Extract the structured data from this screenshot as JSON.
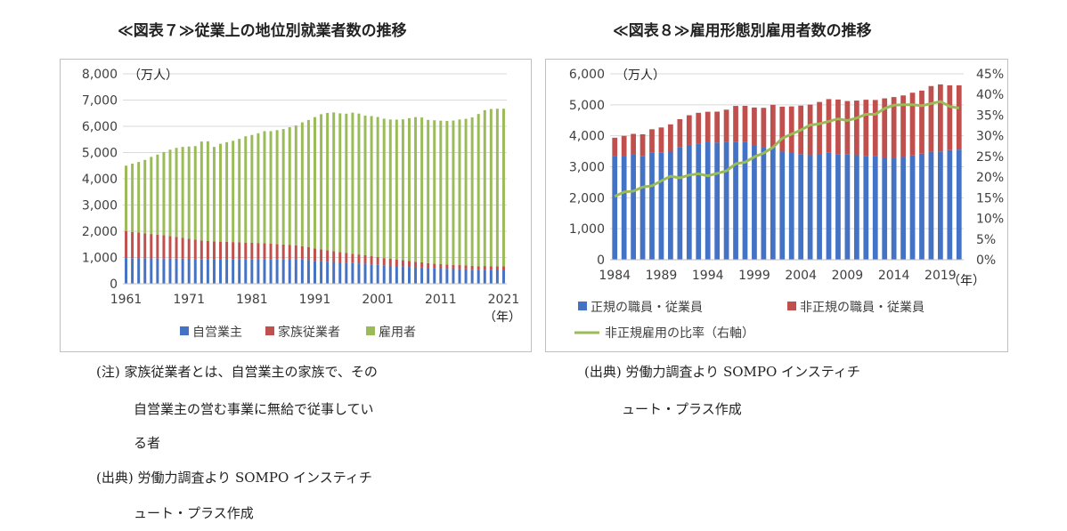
{
  "left": {
    "title": "≪図表７≫従業上の地位別就業者数の推移",
    "notes": [
      "(注) 家族従業者とは、自営業主の家族で、その",
      "自営業主の営む事業に無給で従事してい",
      "る者"
    ],
    "source": [
      "(出典) 労働力調査より SOMPO インスティチ",
      "ュート・プラス作成"
    ]
  },
  "right": {
    "title": "≪図表８≫雇用形態別雇用者数の推移",
    "source": [
      "(出典) 労働力調査より SOMPO インスティチ",
      "ュート・プラス作成"
    ]
  },
  "chart_data": [
    {
      "type": "bar",
      "stacked": true,
      "unit_label": "（万人）",
      "x_unit_label": "（年）",
      "x": [
        1961,
        1962,
        1963,
        1964,
        1965,
        1966,
        1967,
        1968,
        1969,
        1970,
        1971,
        1972,
        1973,
        1974,
        1975,
        1976,
        1977,
        1978,
        1979,
        1980,
        1981,
        1982,
        1983,
        1984,
        1985,
        1986,
        1987,
        1988,
        1989,
        1990,
        1991,
        1992,
        1993,
        1994,
        1995,
        1996,
        1997,
        1998,
        1999,
        2000,
        2001,
        2002,
        2003,
        2004,
        2005,
        2006,
        2007,
        2008,
        2009,
        2010,
        2011,
        2012,
        2013,
        2014,
        2015,
        2016,
        2017,
        2018,
        2019,
        2020,
        2021
      ],
      "x_ticks": [
        "1961",
        "1971",
        "1981",
        "1991",
        "2001",
        "2011",
        "2021"
      ],
      "ylim": [
        0,
        8000
      ],
      "y_ticks": [
        "0",
        "1,000",
        "2,000",
        "3,000",
        "4,000",
        "5,000",
        "6,000",
        "7,000",
        "8,000"
      ],
      "series": [
        {
          "name": "自営業主",
          "color": "#4472c4",
          "values": [
            980,
            975,
            970,
            970,
            965,
            962,
            960,
            960,
            958,
            955,
            950,
            945,
            940,
            938,
            935,
            935,
            935,
            938,
            940,
            940,
            940,
            945,
            945,
            945,
            940,
            935,
            930,
            930,
            920,
            900,
            870,
            855,
            840,
            830,
            815,
            800,
            790,
            775,
            760,
            740,
            720,
            700,
            680,
            660,
            650,
            640,
            625,
            615,
            595,
            580,
            575,
            570,
            560,
            555,
            545,
            535,
            530,
            535,
            530,
            525,
            525
          ]
        },
        {
          "name": "家族従業者",
          "color": "#c0504d",
          "values": [
            1030,
            1000,
            980,
            950,
            930,
            910,
            890,
            860,
            830,
            800,
            770,
            740,
            710,
            690,
            680,
            670,
            660,
            650,
            640,
            630,
            620,
            610,
            600,
            590,
            575,
            560,
            545,
            530,
            510,
            490,
            470,
            455,
            430,
            410,
            390,
            370,
            350,
            340,
            325,
            310,
            295,
            280,
            270,
            255,
            245,
            230,
            215,
            200,
            190,
            180,
            170,
            165,
            160,
            155,
            150,
            145,
            140,
            140,
            140,
            135,
            135
          ]
        },
        {
          "name": "雇用者",
          "color": "#9bbb59",
          "values": [
            2490,
            2600,
            2690,
            2800,
            2940,
            3050,
            3170,
            3290,
            3390,
            3460,
            3510,
            3560,
            3770,
            3800,
            3600,
            3730,
            3800,
            3860,
            3940,
            4050,
            4110,
            4180,
            4270,
            4280,
            4340,
            4400,
            4490,
            4570,
            4720,
            4850,
            5010,
            5150,
            5240,
            5290,
            5290,
            5310,
            5380,
            5370,
            5320,
            5340,
            5340,
            5310,
            5310,
            5340,
            5370,
            5440,
            5510,
            5520,
            5460,
            5470,
            5470,
            5470,
            5500,
            5550,
            5590,
            5660,
            5800,
            5940,
            5990,
            6010,
            6010
          ]
        }
      ]
    },
    {
      "type": "bar",
      "stacked": true,
      "unit_label": "（万人）",
      "x_unit_label": "（年）",
      "x": [
        1984,
        1985,
        1986,
        1987,
        1988,
        1989,
        1990,
        1991,
        1992,
        1993,
        1994,
        1995,
        1996,
        1997,
        1998,
        1999,
        2000,
        2001,
        2002,
        2003,
        2004,
        2005,
        2006,
        2007,
        2008,
        2009,
        2010,
        2011,
        2012,
        2013,
        2014,
        2015,
        2016,
        2017,
        2018,
        2019,
        2020,
        2021
      ],
      "x_ticks": [
        "1984",
        "1989",
        "1994",
        "1999",
        "2004",
        "2009",
        "2014",
        "2019"
      ],
      "ylim": [
        0,
        6000
      ],
      "y_ticks": [
        "0",
        "1,000",
        "2,000",
        "3,000",
        "4,000",
        "5,000",
        "6,000"
      ],
      "y2lim": [
        0,
        45
      ],
      "y2_ticks": [
        "0%",
        "5%",
        "10%",
        "15%",
        "20%",
        "25%",
        "30%",
        "35%",
        "40%",
        "45%"
      ],
      "series": [
        {
          "name": "正規の職員・従業員",
          "color": "#4472c4",
          "values": [
            3333,
            3343,
            3389,
            3337,
            3456,
            3452,
            3488,
            3639,
            3705,
            3756,
            3805,
            3779,
            3800,
            3812,
            3794,
            3688,
            3630,
            3640,
            3489,
            3444,
            3410,
            3374,
            3415,
            3449,
            3410,
            3395,
            3374,
            3352,
            3340,
            3302,
            3288,
            3317,
            3367,
            3423,
            3485,
            3494,
            3539,
            3555
          ]
        },
        {
          "name": "非正規の職員・従業員",
          "color": "#c0504d",
          "values": [
            604,
            655,
            673,
            711,
            755,
            817,
            881,
            897,
            958,
            986,
            971,
            1001,
            1043,
            1152,
            1173,
            1225,
            1273,
            1360,
            1451,
            1504,
            1564,
            1633,
            1677,
            1735,
            1760,
            1727,
            1763,
            1812,
            1816,
            1906,
            1962,
            1986,
            2023,
            2036,
            2120,
            2165,
            2090,
            2075
          ]
        },
        {
          "name": "非正規雇用の比率（右軸）",
          "color": "#9bbb59",
          "axis": "right",
          "values": [
            15.3,
            16.4,
            16.6,
            17.6,
            17.9,
            19.1,
            20.2,
            19.8,
            20.5,
            20.8,
            20.3,
            20.9,
            21.5,
            23.2,
            23.6,
            24.9,
            25.8,
            27.2,
            29.4,
            30.4,
            31.4,
            32.6,
            32.9,
            33.5,
            34.1,
            33.7,
            34.3,
            35.2,
            35.2,
            36.6,
            37.4,
            37.5,
            37.5,
            37.3,
            37.8,
            38.3,
            37.1,
            36.7
          ]
        }
      ]
    }
  ]
}
